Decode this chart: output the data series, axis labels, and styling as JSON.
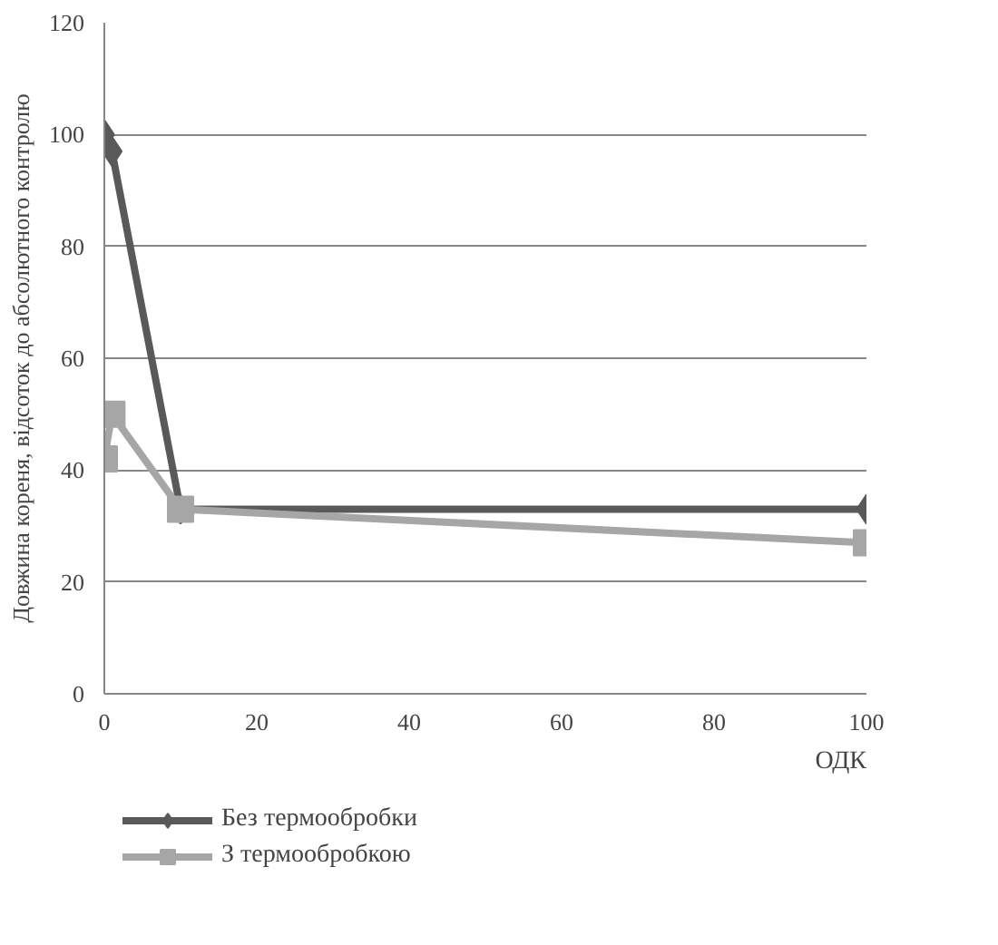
{
  "chart_data": {
    "type": "line",
    "xlabel": "ОДК",
    "ylabel": "Довжина кореня, відсоток до абсолютного контролю",
    "x": [
      0,
      1,
      10,
      100
    ],
    "series": [
      {
        "name": "Без термообробки",
        "color": "#595959",
        "values": [
          100,
          97,
          33,
          33
        ],
        "marker": "diamond"
      },
      {
        "name": "З термообробкою",
        "color": "#a6a6a6",
        "values": [
          42,
          50,
          33,
          27
        ],
        "marker": "square"
      }
    ],
    "xlim": [
      0,
      100
    ],
    "xticks": [
      0,
      20,
      40,
      60,
      80,
      100
    ],
    "ylim": [
      0,
      120
    ],
    "yticks": [
      0,
      20,
      40,
      60,
      80,
      100,
      120
    ],
    "grid": "y",
    "legend": "bottom",
    "line_style": "solid"
  }
}
